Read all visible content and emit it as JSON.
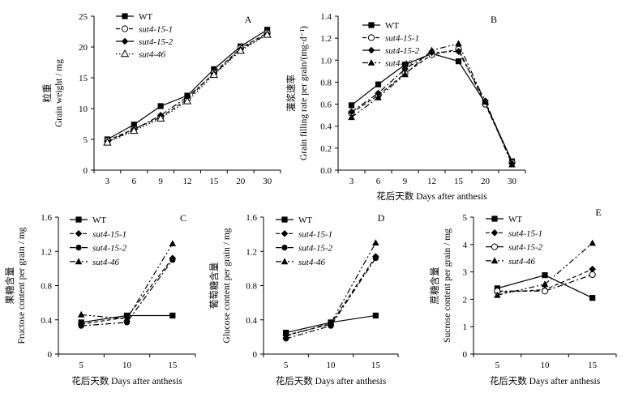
{
  "chart_data": [
    {
      "panel": "A",
      "type": "line",
      "categories": [
        "3",
        "6",
        "9",
        "12",
        "15",
        "20",
        "30"
      ],
      "ylabel": "粒重 Grain weight / mg",
      "ylabel_cn": "粒重",
      "ylabel_en": "Grain weight / mg",
      "xlabel": "",
      "ylim": [
        0,
        25
      ],
      "yticks": [
        "0",
        "5",
        "10",
        "15",
        "20",
        "25"
      ],
      "grid": false,
      "legend_position": "top-left",
      "series": [
        {
          "name": "WT",
          "line": "solid",
          "marker": "square",
          "values": [
            5.0,
            7.4,
            10.4,
            12.1,
            16.4,
            20.1,
            22.8
          ]
        },
        {
          "name": "sut4-15-1",
          "line": "dashed",
          "marker": "circle-open",
          "values": [
            4.8,
            6.7,
            8.6,
            11.5,
            15.8,
            19.8,
            22.3
          ]
        },
        {
          "name": "sut4-15-2",
          "line": "dashdot",
          "marker": "diamond",
          "values": [
            4.6,
            6.6,
            8.9,
            11.9,
            15.6,
            19.6,
            22.1
          ]
        },
        {
          "name": "sut4-46",
          "line": "dotted",
          "marker": "triangle-open",
          "values": [
            4.5,
            6.4,
            8.4,
            11.2,
            15.5,
            19.4,
            22.0
          ]
        }
      ]
    },
    {
      "panel": "B",
      "type": "line",
      "categories": [
        "3",
        "6",
        "9",
        "12",
        "15",
        "20",
        "30"
      ],
      "xlabel": "花后天数 Days after anthesis",
      "ylabel": "灌浆速率 Grain filling rate per grain/(mg·d⁻¹)",
      "ylabel_cn": "灌浆速率",
      "ylabel_en": "Grain filling rate per grain/(mg·d⁻¹)",
      "ylim": [
        0,
        1.4
      ],
      "yticks": [
        "0.0",
        "0.2",
        "0.4",
        "0.6",
        "0.8",
        "1.0",
        "1.2",
        "1.4"
      ],
      "grid": false,
      "legend_position": "top-left",
      "series": [
        {
          "name": "WT",
          "line": "solid",
          "marker": "square",
          "values": [
            0.59,
            0.78,
            0.96,
            1.06,
            0.99,
            0.61,
            0.08
          ]
        },
        {
          "name": "sut4-15-1",
          "line": "dashed",
          "marker": "circle-open",
          "values": [
            0.52,
            0.68,
            0.88,
            1.05,
            1.1,
            0.6,
            0.07
          ]
        },
        {
          "name": "sut4-15-2",
          "line": "dashdot",
          "marker": "diamond",
          "values": [
            0.53,
            0.7,
            0.92,
            1.07,
            1.08,
            0.63,
            0.06
          ]
        },
        {
          "name": "sut4-46",
          "line": "dashdotdot",
          "marker": "triangle",
          "values": [
            0.48,
            0.66,
            0.87,
            1.09,
            1.15,
            0.62,
            0.05
          ]
        }
      ]
    },
    {
      "panel": "C",
      "type": "line",
      "categories": [
        "5",
        "10",
        "15"
      ],
      "xlabel": "花后天数  Days after anthesis",
      "ylabel": "果糖含量 Fructose content per grain / mg",
      "ylabel_cn": "果糖含量",
      "ylabel_en": "Fructose content per grain / mg",
      "ylim": [
        0,
        1.6
      ],
      "yticks": [
        "0",
        "0.4",
        "0.8",
        "1.2",
        "1.6"
      ],
      "grid": false,
      "legend_position": "top-left",
      "series": [
        {
          "name": "WT",
          "line": "solid",
          "marker": "square",
          "values": [
            0.37,
            0.45,
            0.45
          ]
        },
        {
          "name": "sut4-15-1",
          "line": "dashed",
          "marker": "diamond",
          "values": [
            0.35,
            0.43,
            1.12
          ]
        },
        {
          "name": "sut4-15-2",
          "line": "dashdot",
          "marker": "circle",
          "values": [
            0.33,
            0.37,
            1.1
          ]
        },
        {
          "name": "sut4-46",
          "line": "dashdotdot",
          "marker": "triangle",
          "values": [
            0.46,
            0.41,
            1.29
          ]
        }
      ]
    },
    {
      "panel": "D",
      "type": "line",
      "categories": [
        "5",
        "10",
        "15"
      ],
      "xlabel": "花后天数  Days after anthesis",
      "ylabel": "葡萄糖含量 Glucose content per grain / mg",
      "ylabel_cn": "葡萄糖含量",
      "ylabel_en": "Glucose content per grain / mg",
      "ylim": [
        0,
        1.6
      ],
      "yticks": [
        "0",
        "0.4",
        "0.8",
        "1.2",
        "1.6"
      ],
      "grid": false,
      "legend_position": "top-left",
      "series": [
        {
          "name": "WT",
          "line": "solid",
          "marker": "square",
          "values": [
            0.25,
            0.37,
            0.45
          ]
        },
        {
          "name": "sut4-15-1",
          "line": "dashed",
          "marker": "diamond",
          "values": [
            0.22,
            0.35,
            1.14
          ]
        },
        {
          "name": "sut4-15-2",
          "line": "dashdot",
          "marker": "circle",
          "values": [
            0.18,
            0.33,
            1.12
          ]
        },
        {
          "name": "sut4-46",
          "line": "dashdotdot",
          "marker": "triangle",
          "values": [
            0.21,
            0.36,
            1.3
          ]
        }
      ]
    },
    {
      "panel": "E",
      "type": "line",
      "categories": [
        "5",
        "10",
        "15"
      ],
      "xlabel": "花后天数 Days after anthesis",
      "ylabel": "蔗糖含量 Sucrose content per grain / mg",
      "ylabel_cn": "蔗糖含量",
      "ylabel_en": "Sucrose content per grain / mg",
      "ylim": [
        0,
        5
      ],
      "yticks": [
        "0",
        "1",
        "2",
        "3",
        "4",
        "5"
      ],
      "grid": false,
      "legend_position": "top-left",
      "series": [
        {
          "name": "WT",
          "line": "solid",
          "marker": "square",
          "values": [
            2.4,
            2.88,
            2.05
          ]
        },
        {
          "name": "sut4-15-1",
          "line": "dashed",
          "marker": "diamond",
          "values": [
            2.25,
            2.35,
            3.1
          ]
        },
        {
          "name": "sut4-15-2",
          "line": "dashdot",
          "marker": "circle-open",
          "values": [
            2.3,
            2.3,
            2.9
          ]
        },
        {
          "name": "sut4-46",
          "line": "dashdotdot",
          "marker": "triangle",
          "values": [
            2.15,
            2.55,
            4.05
          ]
        }
      ]
    }
  ]
}
